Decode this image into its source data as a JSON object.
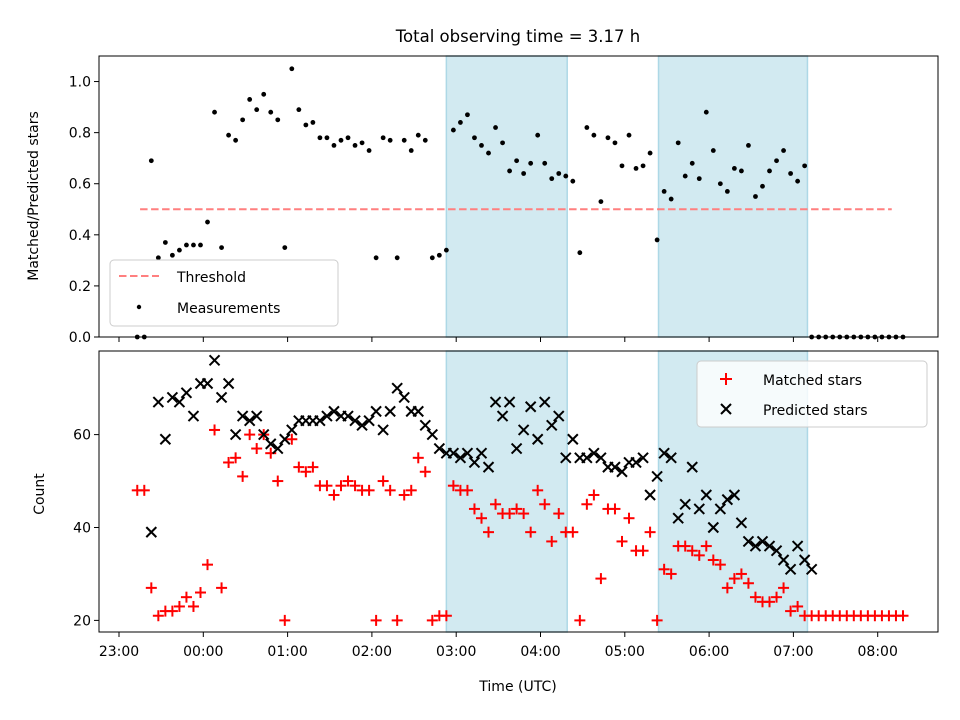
{
  "title": "Total observing time = 3.17 h",
  "xlabel": "Time (UTC)",
  "x_ticks": [
    "23:00",
    "00:00",
    "01:00",
    "02:00",
    "03:00",
    "04:00",
    "05:00",
    "06:00",
    "07:00",
    "08:00"
  ],
  "colors": {
    "shade": "#add8e6",
    "threshold": "#ff7f7f",
    "measurements": "#000000",
    "matched": "#ff0000",
    "predicted": "#000000"
  },
  "chart_data": [
    {
      "type": "scatter",
      "ylabel": "Matched/Predicted stars",
      "ylim": [
        0,
        1.1
      ],
      "yticks": [
        0.0,
        0.2,
        0.4,
        0.6,
        0.8,
        1.0
      ],
      "ytick_labels": [
        "0.0",
        "0.2",
        "0.4",
        "0.6",
        "0.8",
        "1.0"
      ],
      "shaded_spans": [
        [
          "02:53",
          "04:19"
        ],
        [
          "05:24",
          "07:10"
        ]
      ],
      "legend_position": "lower-left",
      "legend": [
        "Threshold",
        "Measurements"
      ],
      "threshold": {
        "name": "Threshold",
        "y": 0.5,
        "x_range": [
          "23:15",
          "08:10"
        ]
      },
      "measurements": {
        "name": "Measurements",
        "x": [
          "23:13",
          "23:18",
          "23:23",
          "23:28",
          "23:33",
          "23:38",
          "23:43",
          "23:48",
          "23:53",
          "23:58",
          "00:03",
          "00:08",
          "00:13",
          "00:18",
          "00:23",
          "00:28",
          "00:33",
          "00:38",
          "00:43",
          "00:48",
          "00:53",
          "00:58",
          "01:03",
          "01:08",
          "01:13",
          "01:18",
          "01:23",
          "01:28",
          "01:33",
          "01:38",
          "01:43",
          "01:48",
          "01:53",
          "01:58",
          "02:03",
          "02:08",
          "02:13",
          "02:18",
          "02:23",
          "02:28",
          "02:33",
          "02:38",
          "02:43",
          "02:48",
          "02:53",
          "02:58",
          "03:03",
          "03:08",
          "03:13",
          "03:18",
          "03:23",
          "03:28",
          "03:33",
          "03:38",
          "03:43",
          "03:48",
          "03:53",
          "03:58",
          "04:03",
          "04:08",
          "04:13",
          "04:18",
          "04:23",
          "04:28",
          "04:33",
          "04:38",
          "04:43",
          "04:48",
          "04:53",
          "04:58",
          "05:03",
          "05:08",
          "05:13",
          "05:18",
          "05:23",
          "05:28",
          "05:33",
          "05:38",
          "05:43",
          "05:48",
          "05:53",
          "05:58",
          "06:03",
          "06:08",
          "06:13",
          "06:18",
          "06:23",
          "06:28",
          "06:33",
          "06:38",
          "06:43",
          "06:48",
          "06:53",
          "06:58",
          "07:03",
          "07:08",
          "07:13",
          "07:18",
          "07:23",
          "07:28",
          "07:33",
          "07:38",
          "07:43",
          "07:48",
          "07:53",
          "07:58",
          "08:03",
          "08:08",
          "08:13",
          "08:18"
        ],
        "y": [
          0.0,
          0.0,
          0.69,
          0.31,
          0.37,
          0.32,
          0.34,
          0.36,
          0.36,
          0.36,
          0.45,
          0.88,
          0.35,
          0.79,
          0.77,
          0.85,
          0.93,
          0.89,
          0.95,
          0.88,
          0.85,
          0.35,
          1.05,
          0.89,
          0.83,
          0.84,
          0.78,
          0.78,
          0.75,
          0.77,
          0.78,
          0.75,
          0.76,
          0.73,
          0.31,
          0.78,
          0.77,
          0.31,
          0.77,
          0.73,
          0.79,
          0.77,
          0.31,
          0.32,
          0.34,
          0.81,
          0.84,
          0.87,
          0.78,
          0.75,
          0.72,
          0.82,
          0.76,
          0.65,
          0.69,
          0.64,
          0.68,
          0.79,
          0.68,
          0.62,
          0.64,
          0.63,
          0.61,
          0.33,
          0.82,
          0.79,
          0.53,
          0.78,
          0.76,
          0.67,
          0.79,
          0.66,
          0.67,
          0.72,
          0.38,
          0.57,
          0.54,
          0.76,
          0.63,
          0.68,
          0.62,
          0.88,
          0.73,
          0.6,
          0.57,
          0.66,
          0.65,
          0.75,
          0.55,
          0.59,
          0.65,
          0.69,
          0.73,
          0.64,
          0.61,
          0.67,
          0.0,
          0.0,
          0.0,
          0.0,
          0.0,
          0.0,
          0.0,
          0.0,
          0.0,
          0.0,
          0.0,
          0.0,
          0.0,
          0.0
        ]
      }
    },
    {
      "type": "scatter",
      "ylabel": "Count",
      "ylim": [
        17.5,
        78
      ],
      "yticks": [
        20,
        40,
        60
      ],
      "ytick_labels": [
        "20",
        "40",
        "60"
      ],
      "shaded_spans": [
        [
          "02:53",
          "04:19"
        ],
        [
          "05:24",
          "07:10"
        ]
      ],
      "legend_position": "upper-right",
      "legend": [
        "Matched stars",
        "Predicted stars"
      ],
      "series": [
        {
          "name": "Matched stars",
          "marker": "plus",
          "x": [
            "23:13",
            "23:18",
            "23:23",
            "23:28",
            "23:33",
            "23:38",
            "23:43",
            "23:48",
            "23:53",
            "23:58",
            "00:03",
            "00:08",
            "00:13",
            "00:18",
            "00:23",
            "00:28",
            "00:33",
            "00:38",
            "00:43",
            "00:48",
            "00:53",
            "00:58",
            "01:03",
            "01:08",
            "01:13",
            "01:18",
            "01:23",
            "01:28",
            "01:33",
            "01:38",
            "01:43",
            "01:48",
            "01:53",
            "01:58",
            "02:03",
            "02:08",
            "02:13",
            "02:18",
            "02:23",
            "02:28",
            "02:33",
            "02:38",
            "02:43",
            "02:48",
            "02:53",
            "02:58",
            "03:03",
            "03:08",
            "03:13",
            "03:18",
            "03:23",
            "03:28",
            "03:33",
            "03:38",
            "03:43",
            "03:48",
            "03:53",
            "03:58",
            "04:03",
            "04:08",
            "04:13",
            "04:18",
            "04:23",
            "04:28",
            "04:33",
            "04:38",
            "04:43",
            "04:48",
            "04:53",
            "04:58",
            "05:03",
            "05:08",
            "05:13",
            "05:18",
            "05:23",
            "05:28",
            "05:33",
            "05:38",
            "05:43",
            "05:48",
            "05:53",
            "05:58",
            "06:03",
            "06:08",
            "06:13",
            "06:18",
            "06:23",
            "06:28",
            "06:33",
            "06:38",
            "06:43",
            "06:48",
            "06:53",
            "06:58",
            "07:03",
            "07:08",
            "07:13",
            "07:18",
            "07:23",
            "07:28",
            "07:33",
            "07:38",
            "07:43",
            "07:48",
            "07:53",
            "07:58",
            "08:03",
            "08:08",
            "08:13",
            "08:18"
          ],
          "y": [
            48,
            48,
            27,
            21,
            22,
            22,
            23,
            25,
            23,
            26,
            32,
            61,
            27,
            54,
            55,
            51,
            60,
            57,
            60,
            56,
            50,
            20,
            59,
            53,
            52,
            53,
            49,
            49,
            47,
            49,
            50,
            49,
            48,
            48,
            20,
            50,
            48,
            20,
            47,
            48,
            55,
            52,
            20,
            21,
            21,
            49,
            48,
            48,
            44,
            42,
            39,
            45,
            43,
            43,
            44,
            43,
            39,
            48,
            45,
            37,
            43,
            39,
            39,
            20,
            45,
            47,
            29,
            44,
            44,
            37,
            42,
            35,
            35,
            39,
            20,
            31,
            30,
            36,
            36,
            35,
            34,
            36,
            33,
            32,
            27,
            29,
            30,
            28,
            25,
            24,
            24,
            25,
            27,
            22,
            23,
            21,
            21,
            21,
            21,
            21,
            21,
            21,
            21,
            21,
            21,
            21,
            21,
            21,
            21,
            21
          ]
        },
        {
          "name": "Predicted stars",
          "marker": "x",
          "x": [
            "23:23",
            "23:28",
            "23:33",
            "23:38",
            "23:43",
            "23:48",
            "23:53",
            "23:58",
            "00:03",
            "00:08",
            "00:13",
            "00:18",
            "00:23",
            "00:28",
            "00:33",
            "00:38",
            "00:43",
            "00:48",
            "00:53",
            "00:58",
            "01:03",
            "01:08",
            "01:13",
            "01:18",
            "01:23",
            "01:28",
            "01:33",
            "01:38",
            "01:43",
            "01:48",
            "01:53",
            "01:58",
            "02:03",
            "02:08",
            "02:13",
            "02:18",
            "02:23",
            "02:28",
            "02:33",
            "02:38",
            "02:43",
            "02:48",
            "02:53",
            "02:58",
            "03:03",
            "03:08",
            "03:13",
            "03:18",
            "03:23",
            "03:28",
            "03:33",
            "03:38",
            "03:43",
            "03:48",
            "03:53",
            "03:58",
            "04:03",
            "04:08",
            "04:13",
            "04:18",
            "04:23",
            "04:28",
            "04:33",
            "04:38",
            "04:43",
            "04:48",
            "04:53",
            "04:58",
            "05:03",
            "05:08",
            "05:13",
            "05:18",
            "05:23",
            "05:28",
            "05:33",
            "05:38",
            "05:43",
            "05:48",
            "05:53",
            "05:58",
            "06:03",
            "06:08",
            "06:13",
            "06:18",
            "06:23",
            "06:28",
            "06:33",
            "06:38",
            "06:43",
            "06:48",
            "06:53",
            "06:58",
            "07:03",
            "07:08",
            "07:13"
          ],
          "y": [
            39,
            67,
            59,
            68,
            67,
            69,
            64,
            71,
            71,
            76,
            68,
            71,
            60,
            64,
            63,
            64,
            60,
            58,
            57,
            59,
            61,
            63,
            63,
            63,
            63,
            64,
            65,
            64,
            64,
            63,
            62,
            63,
            65,
            61,
            65,
            70,
            68,
            65,
            65,
            62,
            60,
            57,
            56,
            56,
            55,
            56,
            54,
            56,
            53,
            67,
            64,
            67,
            57,
            61,
            66,
            59,
            67,
            62,
            64,
            55,
            59,
            55,
            55,
            56,
            55,
            53,
            53,
            52,
            54,
            54,
            55,
            47,
            51,
            56,
            55,
            42,
            45,
            53,
            44,
            47,
            40,
            44,
            46,
            47,
            41,
            37,
            36,
            37,
            36,
            35,
            33,
            31,
            36,
            33,
            31
          ]
        }
      ]
    }
  ]
}
